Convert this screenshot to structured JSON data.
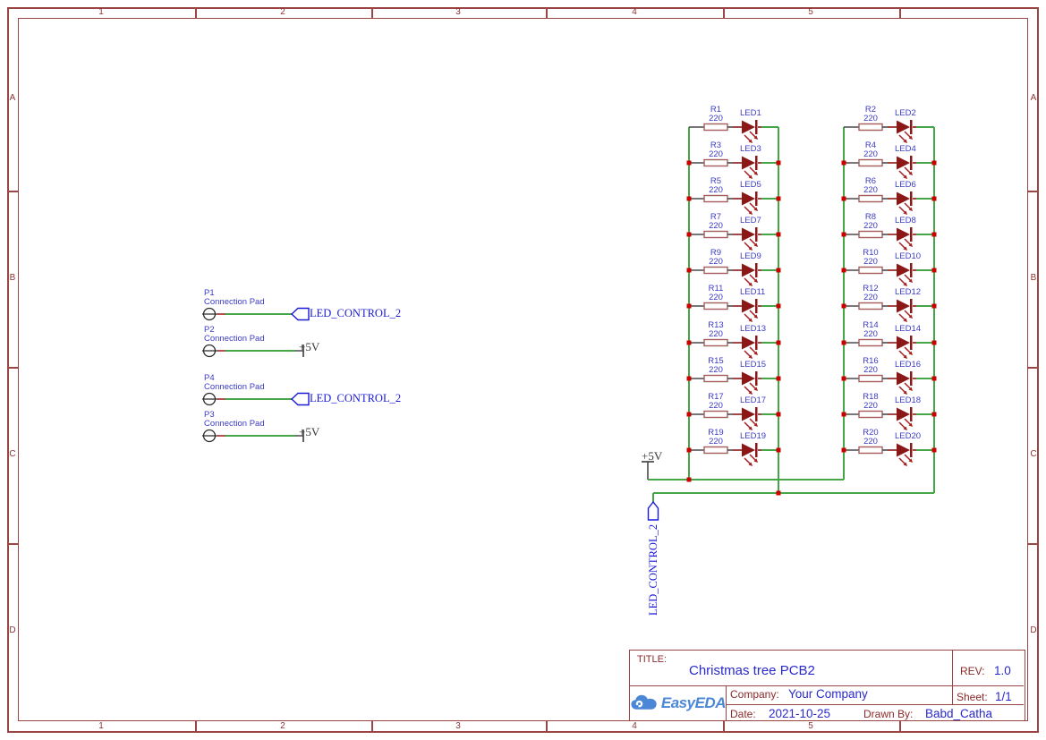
{
  "colors": {
    "frame": "#9c4545",
    "frame_text": "#8b3333",
    "wire": "#46a546",
    "dark_wire": "#8b1717",
    "gray_wire": "#4a4a4a",
    "resistor_stroke": "#a65c5c",
    "junction": "#cc0000",
    "label": "#3b3bc8",
    "net_label": "#1a1ad8",
    "tb_label": "#8b2a2a",
    "title_text": "#2929cc",
    "logo": "#4b87d7",
    "pad_stroke": "#2b2b2b",
    "pad_stub": "#9b2626"
  },
  "sheet": {
    "frame": {
      "columns": [
        "1",
        "2",
        "3",
        "4",
        "5"
      ],
      "rows": [
        "A",
        "B",
        "C",
        "D"
      ]
    }
  },
  "pads": [
    {
      "ref": "P1",
      "desc": "Connection Pad",
      "net": "LED_CONTROL_2"
    },
    {
      "ref": "P2",
      "desc": "Connection Pad",
      "net": "+5V"
    },
    {
      "ref": "P4",
      "desc": "Connection Pad",
      "net": "LED_CONTROL_2"
    },
    {
      "ref": "P3",
      "desc": "Connection Pad",
      "net": "+5V"
    }
  ],
  "led_matrix": {
    "resistor_value": "220",
    "power_net": "+5V",
    "control_net": "LED_CONTROL_2",
    "columns": [
      {
        "rows": [
          {
            "res": "R1",
            "led": "LED1"
          },
          {
            "res": "R3",
            "led": "LED3"
          },
          {
            "res": "R5",
            "led": "LED5"
          },
          {
            "res": "R7",
            "led": "LED7"
          },
          {
            "res": "R9",
            "led": "LED9"
          },
          {
            "res": "R11",
            "led": "LED11"
          },
          {
            "res": "R13",
            "led": "LED13"
          },
          {
            "res": "R15",
            "led": "LED15"
          },
          {
            "res": "R17",
            "led": "LED17"
          },
          {
            "res": "R19",
            "led": "LED19"
          }
        ]
      },
      {
        "rows": [
          {
            "res": "R2",
            "led": "LED2"
          },
          {
            "res": "R4",
            "led": "LED4"
          },
          {
            "res": "R6",
            "led": "LED6"
          },
          {
            "res": "R8",
            "led": "LED8"
          },
          {
            "res": "R10",
            "led": "LED10"
          },
          {
            "res": "R12",
            "led": "LED12"
          },
          {
            "res": "R14",
            "led": "LED14"
          },
          {
            "res": "R16",
            "led": "LED16"
          },
          {
            "res": "R18",
            "led": "LED18"
          },
          {
            "res": "R20",
            "led": "LED20"
          }
        ]
      }
    ]
  },
  "title_block": {
    "title_label": "TITLE:",
    "title": "Christmas tree PCB2",
    "rev_label": "REV:",
    "rev": "1.0",
    "company_label": "Company:",
    "company": "Your Company",
    "sheet_label": "Sheet:",
    "sheet": "1/1",
    "date_label": "Date:",
    "date": "2021-10-25",
    "drawn_by_label": "Drawn By:",
    "drawn_by": "Babd_Catha",
    "logo_text": "EasyEDA"
  }
}
